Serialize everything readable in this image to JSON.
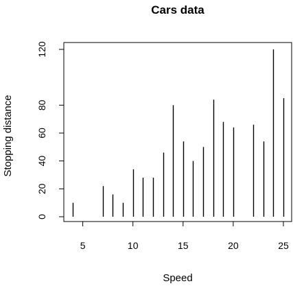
{
  "chart_data": {
    "type": "bar",
    "style": "histogram-spikes",
    "title": "Cars data",
    "xlabel": "Speed",
    "ylabel": "Stopping distance",
    "x": [
      4,
      7,
      8,
      9,
      10,
      11,
      12,
      13,
      14,
      15,
      16,
      17,
      18,
      19,
      20,
      22,
      23,
      24,
      25
    ],
    "values": [
      10,
      22,
      16,
      10,
      34,
      28,
      28,
      46,
      80,
      54,
      40,
      50,
      84,
      68,
      64,
      66,
      54,
      120,
      85
    ],
    "xlim": [
      4,
      25
    ],
    "ylim": [
      0,
      120
    ],
    "xticks": [
      5,
      10,
      15,
      20,
      25
    ],
    "yticks": [
      0,
      20,
      40,
      60,
      80,
      120
    ],
    "xtick_labels": [
      "5",
      "10",
      "15",
      "20",
      "25"
    ],
    "ytick_labels": [
      "0",
      "20",
      "40",
      "60",
      "80",
      "120"
    ],
    "grid": false,
    "legend": "none",
    "bar_color": "#000000"
  }
}
